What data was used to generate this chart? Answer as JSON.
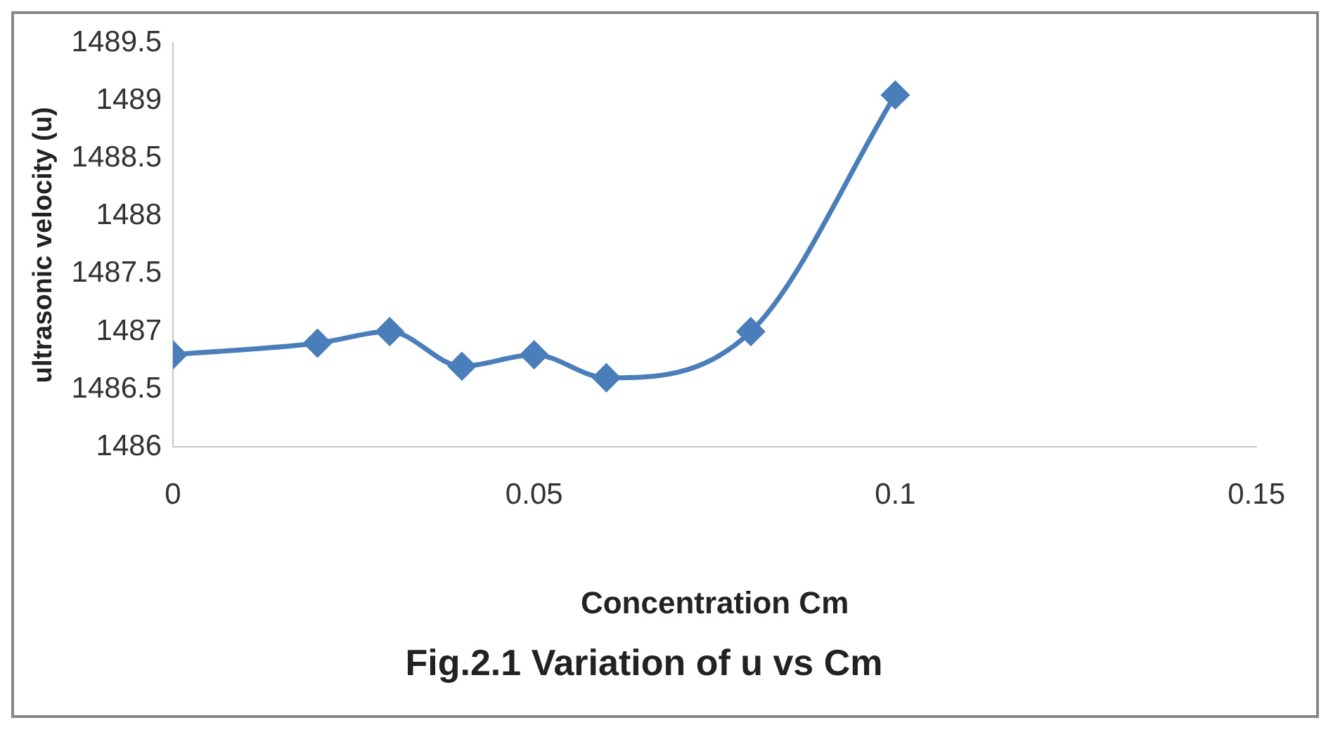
{
  "chart_data": {
    "type": "line",
    "title": "Fig.2.1 Variation of u vs Cm",
    "xlabel": "Concentration Cm",
    "ylabel": "ultrasonic velocity (u)",
    "x": [
      0,
      0.02,
      0.03,
      0.04,
      0.05,
      0.06,
      0.08,
      0.1
    ],
    "series": [
      {
        "color": "#4a7ebb",
        "values": [
          1486.8,
          1486.9,
          1487,
          1486.7,
          1486.8,
          1486.6,
          1487,
          1489.05
        ]
      }
    ],
    "xlim": [
      0,
      0.15
    ],
    "xticks": [
      0,
      0.05,
      0.1,
      0.15
    ],
    "ylim": [
      1486,
      1489.5
    ],
    "yticks": [
      1486,
      1486.5,
      1487,
      1487.5,
      1488,
      1488.5,
      1489,
      1489.5
    ],
    "grid": false,
    "legend": false,
    "marker": "diamond",
    "line_style": "solid"
  }
}
